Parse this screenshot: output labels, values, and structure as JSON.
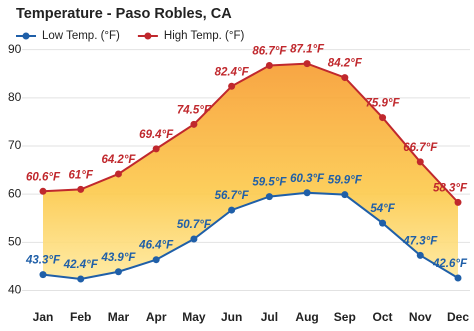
{
  "chart_data": {
    "type": "line",
    "title": "Temperature - Paso Robles, CA",
    "categories": [
      "Jan",
      "Feb",
      "Mar",
      "Apr",
      "May",
      "Jun",
      "Jul",
      "Aug",
      "Sep",
      "Oct",
      "Nov",
      "Dec"
    ],
    "series": [
      {
        "name": "Low Temp. (°F)",
        "color": "#1f5fa8",
        "values": [
          43.3,
          42.4,
          43.9,
          46.4,
          50.7,
          56.7,
          59.5,
          60.3,
          59.9,
          54,
          47.3,
          42.6
        ],
        "value_labels": [
          "43.3°F",
          "42.4°F",
          "43.9°F",
          "46.4°F",
          "50.7°F",
          "56.7°F",
          "59.5°F",
          "60.3°F",
          "59.9°F",
          "54°F",
          "47.3°F",
          "42.6°F"
        ]
      },
      {
        "name": "High Temp. (°F)",
        "color": "#c0282d",
        "values": [
          60.6,
          61,
          64.2,
          69.4,
          74.5,
          82.4,
          86.7,
          87.1,
          84.2,
          75.9,
          66.7,
          58.3
        ],
        "value_labels": [
          "60.6°F",
          "61°F",
          "64.2°F",
          "69.4°F",
          "74.5°F",
          "82.4°F",
          "86.7°F",
          "87.1°F",
          "84.2°F",
          "75.9°F",
          "66.7°F",
          "58.3°F"
        ]
      }
    ],
    "ylim": [
      37,
      92
    ],
    "yticks": [
      40,
      50,
      60,
      70,
      80,
      90
    ],
    "grid": true,
    "legend": "top-left"
  }
}
